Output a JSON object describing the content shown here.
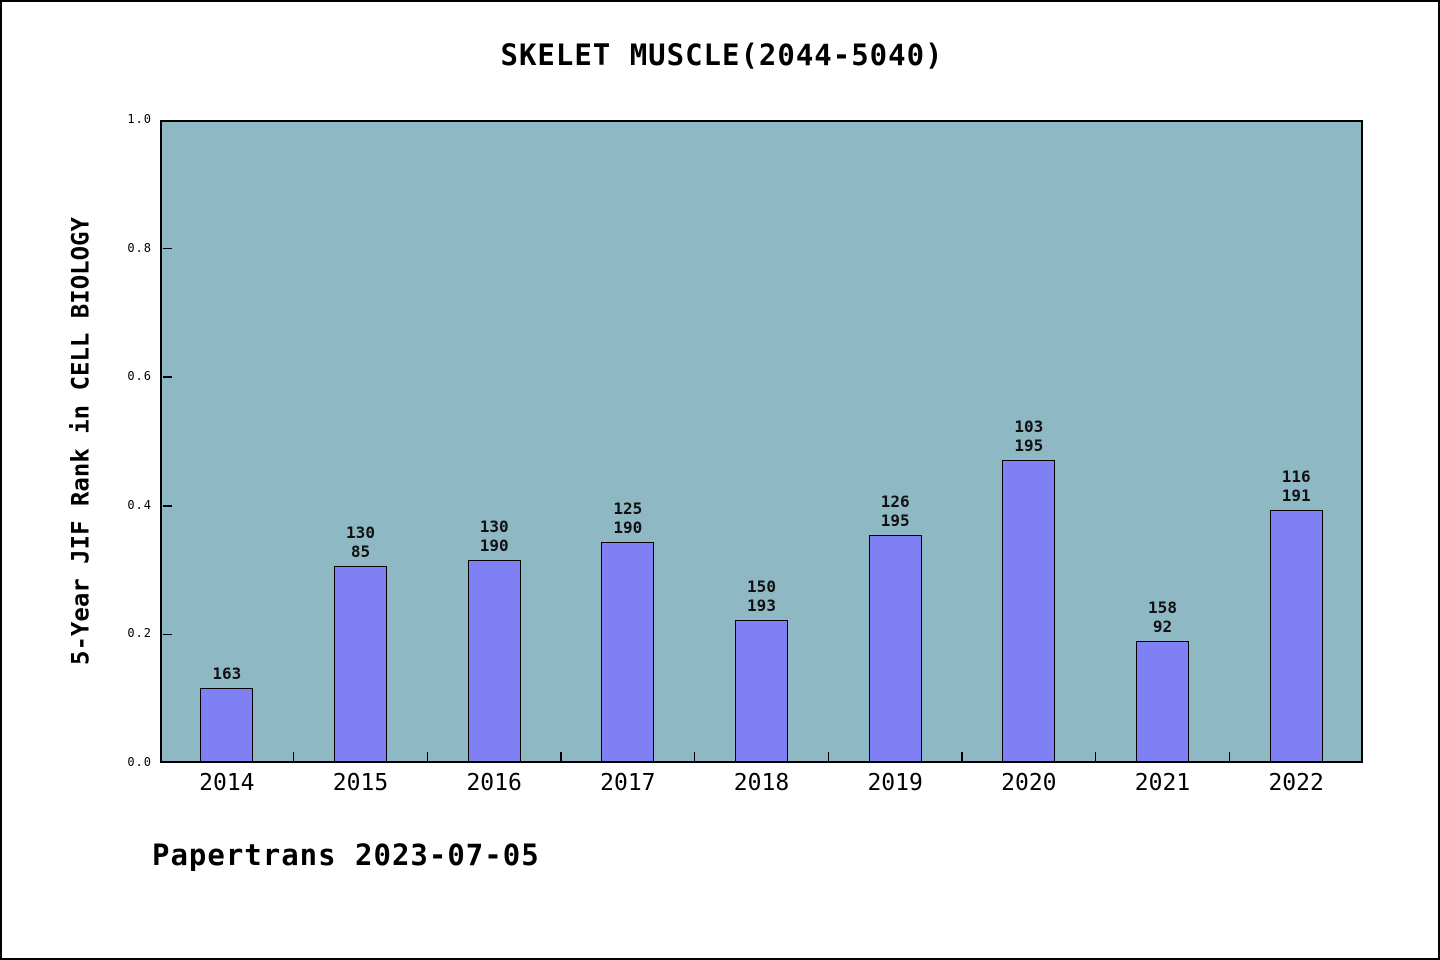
{
  "chart_data": {
    "type": "bar",
    "title": "SKELET MUSCLE(2044-5040)",
    "ylabel": "5-Year JIF Rank in CELL BIOLOGY",
    "xlabel": "",
    "categories": [
      "2014",
      "2015",
      "2016",
      "2017",
      "2018",
      "2019",
      "2020",
      "2021",
      "2022"
    ],
    "values": [
      0.117,
      0.307,
      0.316,
      0.343,
      0.222,
      0.354,
      0.472,
      0.19,
      0.393
    ],
    "bar_labels": [
      [
        "163"
      ],
      [
        "130",
        "85"
      ],
      [
        "130",
        "190"
      ],
      [
        "125",
        "190"
      ],
      [
        "150",
        "193"
      ],
      [
        "126",
        "195"
      ],
      [
        "103",
        "195"
      ],
      [
        "158",
        "92"
      ],
      [
        "116",
        "191"
      ]
    ],
    "ylim": [
      0,
      1
    ],
    "yticks": [
      "0.0",
      "0.2",
      "0.4",
      "0.6",
      "0.8",
      "1.0"
    ],
    "grid": false,
    "legend": null,
    "footer": "Papertrans 2023-07-05",
    "colors": {
      "bar_fill": "#8080F5",
      "bar_edge": "#000000",
      "plot_bg": "#8FB8C5",
      "figure_bg": "#FFFFFF",
      "frame_border": "#000000"
    }
  }
}
